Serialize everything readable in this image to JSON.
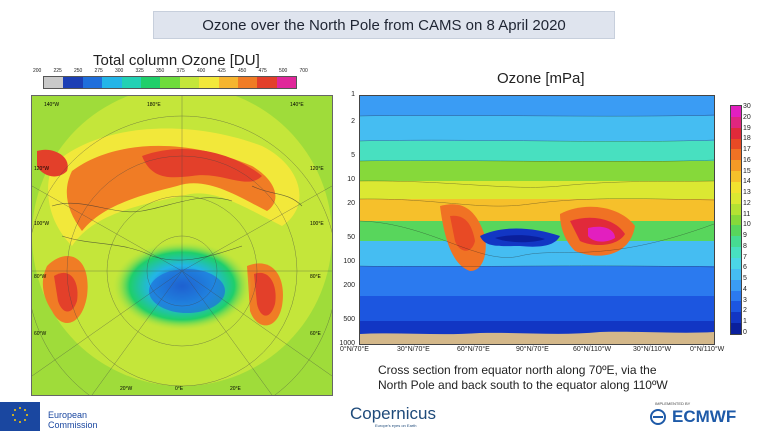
{
  "header": {
    "title": "Ozone over the North Pole from CAMS on 8 April 2020"
  },
  "left_panel": {
    "title": "Total column Ozone [DU]",
    "colorbar_ticks": [
      "200",
      "225",
      "250",
      "275",
      "300",
      "325",
      "350",
      "375",
      "400",
      "425",
      "450",
      "475",
      "500",
      "700"
    ],
    "colorbar_colors": [
      "#c9c9c9",
      "#1c3fb5",
      "#1f6fdc",
      "#23b5e8",
      "#22d1b4",
      "#1fcf6a",
      "#6fdc3c",
      "#c4e63a",
      "#f2e83a",
      "#f6b52f",
      "#f07c25",
      "#e3402a",
      "#e0279a"
    ],
    "longitude_labels": [
      "140°W",
      "180°E",
      "140°E",
      "120°W",
      "100°W",
      "80°W",
      "60°W",
      "120°E",
      "100°E",
      "80°E",
      "60°E",
      "20°W",
      "0°E",
      "20°E"
    ]
  },
  "right_panel": {
    "title": "Ozone [mPa]",
    "pressure_ticks": [
      "1",
      "2",
      "5",
      "10",
      "20",
      "50",
      "100",
      "200",
      "500",
      "1000"
    ],
    "x_ticks": [
      "0°N/70°E",
      "30°N/70°E",
      "60°N/70°E",
      "90°N/70°E",
      "60°N/110°W",
      "30°N/110°W",
      "0°N/110°W"
    ],
    "colorbar_ticks": [
      "0",
      "1",
      "2",
      "3",
      "4",
      "5",
      "6",
      "7",
      "8",
      "9",
      "10",
      "11",
      "12",
      "13",
      "14",
      "15",
      "16",
      "17",
      "18",
      "19",
      "20",
      "30"
    ],
    "colorbar_colors": [
      "#0a1f9c",
      "#1236c4",
      "#1c56e0",
      "#2b7aef",
      "#3a9cf4",
      "#45bdf2",
      "#4bd6e6",
      "#48e0c0",
      "#46dc92",
      "#58d65c",
      "#86d93a",
      "#b4e233",
      "#dbe832",
      "#f2e22f",
      "#f6c02b",
      "#f59a26",
      "#f07224",
      "#e84a25",
      "#e12a3a",
      "#e0267e",
      "#e21fbf"
    ]
  },
  "caption": {
    "line1": "Cross section from equator north along 70ºE, via the",
    "line2": "North Pole and back south to the equator along 110ºW"
  },
  "footer": {
    "ec_line1": "European",
    "ec_line2": "Commission",
    "copernicus": "Copernicus",
    "copernicus_sub": "Europe's eyes on Earth",
    "ecmwf_sub": "IMPLEMENTED BY",
    "ecmwf": "ECMWF"
  }
}
